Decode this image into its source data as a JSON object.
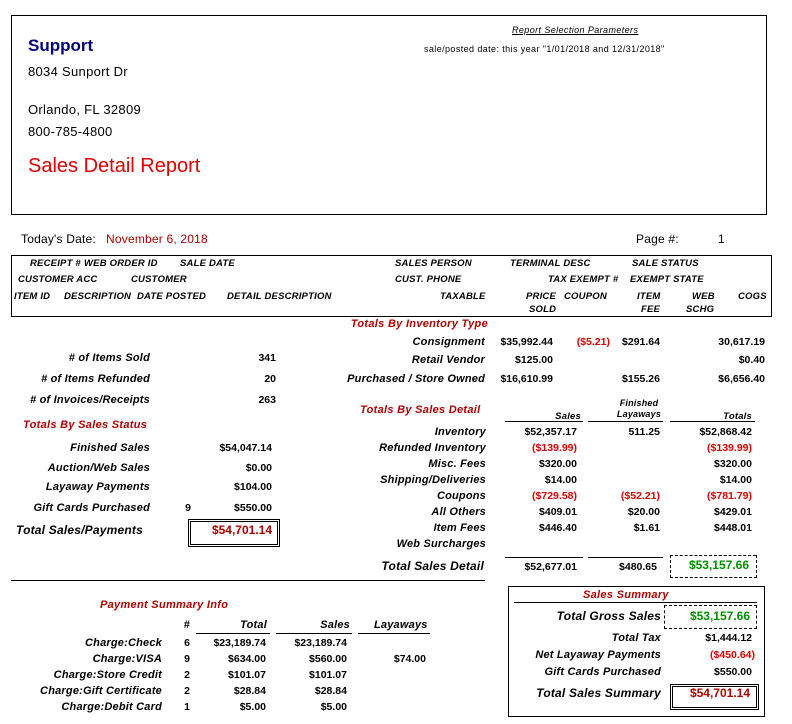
{
  "header": {
    "company": "Support",
    "address": "8034 Sunport Dr",
    "city": "Orlando, FL 32809",
    "phone": "800-785-4800",
    "report_title": "Sales Detail Report",
    "params_title": "Report Selection Parameters",
    "params_text": "sale/posted date: this year \"1/01/2018 and 12/31/2018\""
  },
  "meta": {
    "date_label": "Today's Date:",
    "date": "November 6, 2018",
    "page_label": "Page #:",
    "page": "1"
  },
  "columns": {
    "row1": [
      "RECEIPT #",
      "WEB ORDER ID",
      "SALE DATE",
      "SALES PERSON",
      "TERMINAL DESC",
      "SALE STATUS"
    ],
    "row2": [
      "CUSTOMER ACC",
      "CUSTOMER",
      "CUST. PHONE",
      "TAX EXEMPT #",
      "EXEMPT STATE"
    ],
    "row3": [
      "ITEM ID",
      "DESCRIPTION",
      "DATE POSTED",
      "DETAIL DESCRIPTION",
      "TAXABLE",
      "PRICE",
      "COUPON",
      "ITEM",
      "WEB",
      "COGS"
    ],
    "row4": [
      "SOLD",
      "FEE",
      "SCHG"
    ]
  },
  "counts": [
    {
      "label": "# of Items Sold",
      "value": "341"
    },
    {
      "label": "# of Items Refunded",
      "value": "20"
    },
    {
      "label": "# of Invoices/Receipts",
      "value": "263"
    }
  ],
  "sales_status": {
    "title": "Totals By Sales Status",
    "rows": [
      {
        "label": "Finished Sales",
        "count": null,
        "value": "$54,047.14"
      },
      {
        "label": "Auction/Web Sales",
        "count": null,
        "value": "$0.00"
      },
      {
        "label": "Layaway Payments",
        "count": null,
        "value": "$104.00"
      },
      {
        "label": "Gift Cards Purchased",
        "count": "9",
        "value": "$550.00"
      }
    ],
    "total": {
      "label": "Total Sales/Payments",
      "value": "$54,701.14"
    }
  },
  "inventory_type": {
    "title": "Totals By Inventory Type",
    "rows": [
      {
        "label": "Consignment",
        "values": [
          "$35,992.44",
          "($5.21)",
          "$291.64",
          "30,617.19"
        ]
      },
      {
        "label": "Retail Vendor",
        "values": [
          "$125.00",
          null,
          null,
          "$0.40"
        ]
      },
      {
        "label": "Purchased / Store Owned",
        "values": [
          "$16,610.99",
          null,
          "$155.26",
          "$6,656.40"
        ]
      }
    ]
  },
  "sales_detail": {
    "title": "Totals By Sales Detail",
    "headers": [
      "Sales",
      "Finished Layaways",
      "Totals"
    ],
    "rows": [
      {
        "label": "Inventory",
        "values": [
          "$52,357.17",
          "511.25",
          "$52,868.42"
        ]
      },
      {
        "label": "Refunded Inventory",
        "values": [
          "($139.99)",
          null,
          "($139.99)"
        ]
      },
      {
        "label": "Misc. Fees",
        "values": [
          "$320.00",
          null,
          "$320.00"
        ]
      },
      {
        "label": "Shipping/Deliveries",
        "values": [
          "$14.00",
          null,
          "$14.00"
        ]
      },
      {
        "label": "Coupons",
        "values": [
          "($729.58)",
          "($52.21)",
          "($781.79)"
        ]
      },
      {
        "label": "All Others",
        "values": [
          "$409.01",
          "$20.00",
          "$429.01"
        ]
      },
      {
        "label": "Item Fees",
        "values": [
          "$446.40",
          "$1.61",
          "$448.01"
        ]
      },
      {
        "label": "Web Surcharges",
        "values": [
          null,
          null,
          null
        ]
      }
    ],
    "total": {
      "label": "Total Sales Detail",
      "values": [
        "$52,677.01",
        "$480.65",
        "$53,157.66"
      ]
    }
  },
  "payment_summary": {
    "title": "Payment Summary Info",
    "headers": [
      "#",
      "Total",
      "Sales",
      "Layaways"
    ],
    "rows": [
      {
        "label": "Charge:Check",
        "values": [
          "6",
          "$23,189.74",
          "$23,189.74",
          null
        ]
      },
      {
        "label": "Charge:VISA",
        "values": [
          "9",
          "$634.00",
          "$560.00",
          "$74.00"
        ]
      },
      {
        "label": "Charge:Store Credit",
        "values": [
          "2",
          "$101.07",
          "$101.07",
          null
        ]
      },
      {
        "label": "Charge:Gift Certificate",
        "values": [
          "2",
          "$28.84",
          "$28.84",
          null
        ]
      },
      {
        "label": "Charge:Debit Card",
        "values": [
          "1",
          "$5.00",
          "$5.00",
          null
        ]
      }
    ]
  },
  "sales_summary": {
    "title": "Sales Summary",
    "rows": [
      {
        "label": "Total Gross Sales",
        "value": "$53,157.66"
      },
      {
        "label": "Total Tax",
        "value": "$1,444.12"
      },
      {
        "label": "Net Layaway Payments",
        "value": "($450.64)"
      },
      {
        "label": "Gift Cards Purchased",
        "value": "$550.00"
      },
      {
        "label": "Total Sales Summary",
        "value": "$54,701.14"
      }
    ]
  }
}
